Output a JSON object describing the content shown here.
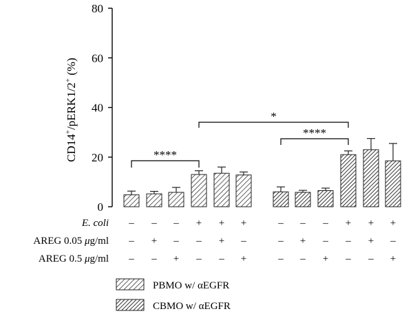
{
  "chart_data": {
    "type": "bar",
    "ylabel_main": "CD14",
    "ylabel_sup1": "+",
    "ylabel_mid": "/pERK1/2",
    "ylabel_sup2": "+",
    "ylabel_unit": " (%)",
    "ylim": [
      0,
      80
    ],
    "yticks": [
      "0",
      "20",
      "40",
      "60",
      "80"
    ],
    "series": [
      {
        "name": "PBMO w/ αEGFR",
        "values": [
          4.8,
          5.2,
          5.8,
          13.0,
          13.5,
          12.8
        ],
        "errors": [
          1.5,
          1.0,
          2.0,
          1.5,
          2.5,
          1.2
        ]
      },
      {
        "name": "CBMO w/ αEGFR",
        "values": [
          6.0,
          5.8,
          6.5,
          21.0,
          23.0,
          18.5
        ],
        "errors": [
          2.0,
          0.8,
          1.0,
          1.5,
          4.5,
          7.0
        ]
      }
    ],
    "condition_rows": [
      {
        "label": "E. coli",
        "label_italic": true,
        "signs": [
          "–",
          "–",
          "–",
          "+",
          "+",
          "+",
          "–",
          "–",
          "–",
          "+",
          "+",
          "+"
        ]
      },
      {
        "label_pre": "AREG 0.05 ",
        "label_mu": "μ",
        "label_post": "g/ml",
        "signs": [
          "–",
          "+",
          "–",
          "–",
          "+",
          "–",
          "–",
          "+",
          "–",
          "–",
          "+",
          "–"
        ]
      },
      {
        "label_pre": "AREG 0.5 ",
        "label_mu": "μ",
        "label_post": "g/ml",
        "signs": [
          "–",
          "–",
          "+",
          "–",
          "–",
          "+",
          "–",
          "–",
          "+",
          "–",
          "–",
          "+"
        ]
      }
    ],
    "significance": [
      {
        "from": 0,
        "to": 3,
        "label": "****"
      },
      {
        "from": 9,
        "to": 6,
        "label": "****"
      },
      {
        "from": 3,
        "to": 9,
        "label": "*"
      }
    ],
    "colors": {
      "bar_fill": "#ffffff",
      "hatch": "#3a3a3a",
      "stroke": "#222222"
    },
    "grid": false,
    "legend_position": "bottom-center"
  }
}
